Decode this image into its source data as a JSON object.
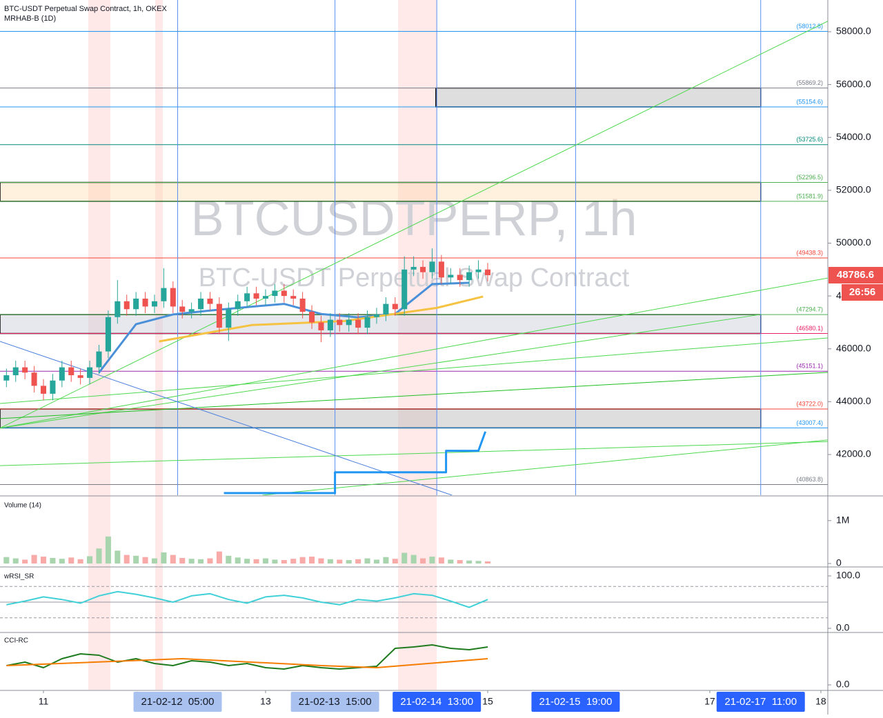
{
  "chart_data": [
    {
      "type": "candlestick",
      "title": "BTC-USDT Perpetual Swap Contract, 1h, OKEX",
      "subtitle": "MRHAB-B (1D)",
      "watermark": [
        "BTCUSDTPERP, 1h",
        "BTC-USDT Perpetual Swap Contract"
      ],
      "x": [
        -8,
        -6,
        -4,
        -2,
        0,
        2,
        4,
        6,
        8,
        10,
        12,
        14,
        16,
        18,
        20,
        22,
        24,
        26,
        28,
        30,
        32,
        34,
        36,
        38,
        40,
        42,
        44,
        46,
        48,
        50,
        52,
        54,
        56,
        58,
        60,
        62,
        64,
        66,
        68,
        70,
        72,
        74,
        76,
        78,
        80,
        82,
        84,
        86,
        88,
        90,
        92,
        94,
        96
      ],
      "open": [
        44800,
        45000,
        45300,
        45100,
        44600,
        44300,
        44800,
        45300,
        45000,
        44900,
        45300,
        45900,
        47200,
        47800,
        47500,
        47900,
        47600,
        47800,
        48300,
        47600,
        47400,
        47500,
        47900,
        47700,
        46800,
        47500,
        47800,
        48100,
        47900,
        48000,
        48200,
        48000,
        47900,
        47400,
        47000,
        46700,
        47100,
        46900,
        47100,
        46800,
        47200,
        47300,
        47700,
        47500,
        49000,
        49100,
        48900,
        49300,
        48700,
        48800,
        48600,
        48900,
        49000
      ],
      "high": [
        45250,
        45550,
        45550,
        45350,
        44850,
        45050,
        45550,
        45550,
        45250,
        45550,
        46150,
        47450,
        48600,
        48050,
        48150,
        48150,
        48050,
        49050,
        48550,
        47850,
        47750,
        48150,
        48150,
        47950,
        47750,
        48050,
        48350,
        48350,
        48250,
        48450,
        48450,
        48250,
        48150,
        47650,
        47250,
        47350,
        47350,
        47350,
        47350,
        47450,
        47550,
        47950,
        47950,
        49500,
        49500,
        49350,
        49800,
        49550,
        49050,
        49050,
        49150,
        49350,
        49250
      ],
      "low": [
        44550,
        44750,
        44850,
        44350,
        44050,
        44050,
        44550,
        44750,
        44650,
        44650,
        45050,
        45650,
        46950,
        47250,
        47250,
        47350,
        47350,
        47550,
        47350,
        47150,
        47150,
        47250,
        47450,
        46550,
        46300,
        47250,
        47550,
        47650,
        47650,
        47750,
        47750,
        47650,
        47150,
        46750,
        46250,
        46450,
        46650,
        46650,
        46550,
        46550,
        46950,
        47050,
        47250,
        47250,
        48750,
        48650,
        48650,
        48450,
        48450,
        48350,
        48350,
        48650,
        48550
      ],
      "close": [
        45000,
        45300,
        45100,
        44600,
        44300,
        44800,
        45300,
        45000,
        44900,
        45300,
        45900,
        47200,
        47800,
        47500,
        47900,
        47600,
        47800,
        48300,
        47600,
        47400,
        47500,
        47900,
        47700,
        46800,
        47500,
        47800,
        48100,
        47900,
        48000,
        48200,
        48000,
        47900,
        47400,
        47000,
        46700,
        47100,
        46900,
        47100,
        46800,
        47200,
        47300,
        47700,
        47500,
        49000,
        49100,
        48900,
        49300,
        48700,
        48800,
        48600,
        48900,
        49000,
        48786.6
      ],
      "up_color": "#26a69a",
      "down_color": "#ef5350",
      "xlim": [
        -9.39,
        169.5
      ],
      "ylim": [
        40460,
        59200
      ],
      "yticks": [
        {
          "value": 42000,
          "label": "42000.0"
        },
        {
          "value": 44000,
          "label": "44000.0"
        },
        {
          "value": 46000,
          "label": "46000.0"
        },
        {
          "value": 48000,
          "label": "48000.0"
        },
        {
          "value": 50000,
          "label": "50000.0"
        },
        {
          "value": 52000,
          "label": "52000.0"
        },
        {
          "value": 54000,
          "label": "54000.0"
        },
        {
          "value": 56000,
          "label": "56000.0"
        },
        {
          "value": 58000,
          "label": "58000.0"
        }
      ],
      "xticks": [
        {
          "value": 0,
          "label": "11"
        },
        {
          "value": 48,
          "label": "13"
        },
        {
          "value": 96,
          "label": "15"
        },
        {
          "value": 144,
          "label": "17"
        },
        {
          "value": 168,
          "label": "18"
        }
      ],
      "time_markers": [
        {
          "value": 29,
          "label": "21-02-12  05:00",
          "color": "#a8c1ee",
          "text_color": "#131722"
        },
        {
          "value": 63,
          "label": "21-02-13  15:00",
          "color": "#a8c1ee",
          "text_color": "#131722"
        },
        {
          "value": 85,
          "label": "21-02-14  13:00",
          "color": "#2962ff",
          "text_color": "#ffffff"
        },
        {
          "value": 115,
          "label": "21-02-15  19:00",
          "color": "#2962ff",
          "text_color": "#ffffff"
        },
        {
          "value": 155,
          "label": "21-02-17  11:00",
          "color": "#2962ff",
          "text_color": "#ffffff"
        }
      ],
      "vlines": [
        29,
        63,
        85,
        115,
        155
      ],
      "vline_color": "#5b8def",
      "levels": [
        {
          "value": 58012.8,
          "label": "(58012.8)",
          "color": "#2196f3"
        },
        {
          "value": 55869.2,
          "label": "(55869.2)",
          "color": "#787b86"
        },
        {
          "value": 55154.6,
          "label": "(55154.6)",
          "color": "#2196f3"
        },
        {
          "value": 53725.6,
          "label": "(53725.6)",
          "color": "#00897b"
        },
        {
          "value": 52296.5,
          "label": "(52296.5)",
          "color": "#4caf50"
        },
        {
          "value": 51581.9,
          "label": "(51581.9)",
          "color": "#4caf50"
        },
        {
          "value": 49438.3,
          "label": "(49438.3)",
          "color": "#f44336"
        },
        {
          "value": 47294.7,
          "label": "(47294.7)",
          "color": "#4caf50"
        },
        {
          "value": 46580.1,
          "label": "(46580.1)",
          "color": "#e91e63"
        },
        {
          "value": 45151.1,
          "label": "(45151.1)",
          "color": "#9c27b0"
        },
        {
          "value": 43722.0,
          "label": "(43722.0)",
          "color": "#f44336"
        },
        {
          "value": 43007.4,
          "label": "(43007.4)",
          "color": "#2196f3"
        },
        {
          "value": 40863.8,
          "label": "(40863.8)",
          "color": "#787b86"
        }
      ],
      "boxes": [
        {
          "top": 55869.2,
          "bottom": 55154.6,
          "x": [
            84.8,
            155
          ],
          "fill": "rgba(190,190,190,0.5)"
        },
        {
          "top": 52296.5,
          "bottom": 51581.9,
          "x": [
            -9.39,
            155
          ],
          "fill": "rgba(255,214,160,0.35)"
        },
        {
          "top": 47294.7,
          "bottom": 46580.1,
          "x": [
            -9.39,
            155
          ],
          "fill": "rgba(200,205,215,0.45)"
        },
        {
          "top": 43722.0,
          "bottom": 43007.4,
          "x": [
            -9.39,
            155
          ],
          "fill": "rgba(190,190,190,0.5)"
        }
      ],
      "trendlines": [
        {
          "x": [
            -9.39,
            169.5
          ],
          "y": [
            43000,
            58400
          ],
          "color": "#4cd84c"
        },
        {
          "x": [
            -9.39,
            169.5
          ],
          "y": [
            43000,
            48680
          ],
          "color": "#4cd84c"
        },
        {
          "x": [
            -9.39,
            155
          ],
          "y": [
            43000,
            47300
          ],
          "color": "#4cd84c"
        },
        {
          "x": [
            -9.39,
            169.5
          ],
          "y": [
            43360,
            45110
          ],
          "color": "#1fbf1f"
        },
        {
          "x": [
            -9.39,
            169.5
          ],
          "y": [
            41580,
            42490
          ],
          "color": "#4cd84c"
        },
        {
          "x": [
            47.3,
            169.5
          ],
          "y": [
            40460,
            42550
          ],
          "color": "#4cd84c"
        },
        {
          "x": [
            -9.39,
            169.5
          ],
          "y": [
            43930,
            46410
          ],
          "color": "#4cd84c"
        },
        {
          "x": [
            -9.39,
            88.3
          ],
          "y": [
            46280,
            40460
          ],
          "color": "#4a7fdc"
        }
      ],
      "series": [
        {
          "color": "#4a90d9",
          "x": [
            12,
            20,
            28,
            36,
            44,
            52,
            60,
            68,
            76,
            84,
            92
          ],
          "values": [
            45100,
            46930,
            47300,
            47450,
            47580,
            47700,
            47320,
            47190,
            47320,
            48450,
            48500
          ]
        },
        {
          "color": "#f5c242",
          "x": [
            25,
            45,
            65,
            85,
            95
          ],
          "values": [
            46280,
            46900,
            47050,
            47550,
            47980
          ]
        },
        {
          "color": "#2196f3",
          "x": [
            39,
            63,
            63,
            87,
            87,
            94,
            95.5
          ],
          "values": [
            40540,
            40540,
            41330,
            41330,
            42140,
            42140,
            42870
          ]
        }
      ],
      "last_price": 48786.6,
      "last_price_color": "#ef5350",
      "countdown": "26:56"
    },
    {
      "type": "bar",
      "title": "Volume (14)",
      "x": [
        -8,
        -6,
        -4,
        -2,
        0,
        2,
        4,
        6,
        8,
        10,
        12,
        14,
        16,
        18,
        20,
        22,
        24,
        26,
        28,
        30,
        32,
        34,
        36,
        38,
        40,
        42,
        44,
        46,
        48,
        50,
        52,
        54,
        56,
        58,
        60,
        62,
        64,
        66,
        68,
        70,
        72,
        74,
        76,
        78,
        80,
        82,
        84,
        86,
        88,
        90,
        92,
        94,
        96
      ],
      "values": [
        150000,
        120000,
        90000,
        200000,
        160000,
        130000,
        110000,
        140000,
        100000,
        170000,
        350000,
        630000,
        300000,
        200000,
        180000,
        150000,
        120000,
        260000,
        200000,
        130000,
        110000,
        100000,
        120000,
        280000,
        180000,
        140000,
        110000,
        100000,
        120000,
        90000,
        80000,
        110000,
        150000,
        160000,
        120000,
        100000,
        90000,
        80000,
        100000,
        120000,
        90000,
        150000,
        110000,
        250000,
        200000,
        120000,
        160000,
        140000,
        90000,
        80000,
        70000,
        60000,
        50000
      ],
      "up_color": "#a8d5ad",
      "down_color": "#f7aaa8",
      "ylim": [
        0,
        1560000
      ],
      "yticks": [
        0,
        {
          "value": 1000000,
          "label": "1M"
        }
      ]
    },
    {
      "type": "line",
      "title": "wRSI_SR",
      "x": [
        -8,
        -4,
        0,
        4,
        8,
        12,
        16,
        20,
        24,
        28,
        32,
        36,
        40,
        44,
        48,
        52,
        56,
        60,
        64,
        68,
        72,
        76,
        80,
        84,
        88,
        92,
        96
      ],
      "values": [
        45,
        52,
        60,
        55,
        48,
        62,
        70,
        65,
        58,
        50,
        62,
        66,
        55,
        48,
        60,
        63,
        58,
        50,
        45,
        55,
        52,
        58,
        66,
        63,
        52,
        40,
        55
      ],
      "color": "#3fd0d8",
      "ylim": [
        -5.3,
        113.2
      ],
      "yticks": [
        {
          "value": 0,
          "label": "0.0"
        },
        {
          "value": 100,
          "label": "100.0"
        }
      ],
      "hlines": [
        80,
        50,
        20
      ]
    },
    {
      "type": "line",
      "title": "CCI-RC",
      "series": [
        {
          "color": "#1e7b1e",
          "x": [
            -8,
            -4,
            0,
            4,
            8,
            12,
            16,
            20,
            24,
            28,
            32,
            36,
            40,
            44,
            48,
            52,
            56,
            60,
            64,
            68,
            72,
            76,
            80,
            84,
            88,
            92,
            96
          ],
          "values": [
            28,
            33,
            25,
            38,
            45,
            43,
            33,
            38,
            31,
            28,
            35,
            33,
            28,
            31,
            25,
            23,
            28,
            25,
            23,
            25,
            27,
            53,
            55,
            58,
            53,
            51,
            55
          ]
        },
        {
          "color": "#f57c00",
          "x": [
            -8,
            30,
            60,
            72,
            96
          ],
          "values": [
            28,
            38,
            28,
            25,
            38
          ]
        }
      ],
      "ylim": [
        -7,
        75
      ],
      "yticks": [
        {
          "value": 0,
          "label": "0.0"
        }
      ]
    }
  ]
}
